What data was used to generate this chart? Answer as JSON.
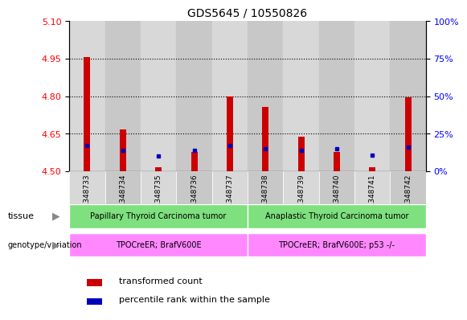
{
  "title": "GDS5645 / 10550826",
  "samples": [
    "GSM1348733",
    "GSM1348734",
    "GSM1348735",
    "GSM1348736",
    "GSM1348737",
    "GSM1348738",
    "GSM1348739",
    "GSM1348740",
    "GSM1348741",
    "GSM1348742"
  ],
  "red_values": [
    4.958,
    4.668,
    4.518,
    4.578,
    4.8,
    4.758,
    4.638,
    4.578,
    4.515,
    4.795
  ],
  "blue_percentiles": [
    17,
    14,
    10,
    14,
    17,
    15,
    14,
    15,
    11,
    16
  ],
  "y_min": 4.5,
  "y_max": 5.1,
  "y_ticks_left": [
    4.5,
    4.65,
    4.8,
    4.95,
    5.1
  ],
  "y_ticks_right": [
    0,
    25,
    50,
    75,
    100
  ],
  "grid_lines": [
    4.95,
    4.8,
    4.65
  ],
  "tissue_labels": [
    "Papillary Thyroid Carcinoma tumor",
    "Anaplastic Thyroid Carcinoma tumor"
  ],
  "tissue_green": "#7EE07E",
  "tissue_split": 5,
  "genotype_labels": [
    "TPOCreER; BrafV600E",
    "TPOCreER; BrafV600E; p53 -/-"
  ],
  "genotype_color": "#FF88FF",
  "bar_color_red": "#CC0000",
  "bar_color_blue": "#0000BB",
  "col_bg_even": "#D8D8D8",
  "col_bg_odd": "#C8C8C8",
  "legend_red": "transformed count",
  "legend_blue": "percentile rank within the sample"
}
